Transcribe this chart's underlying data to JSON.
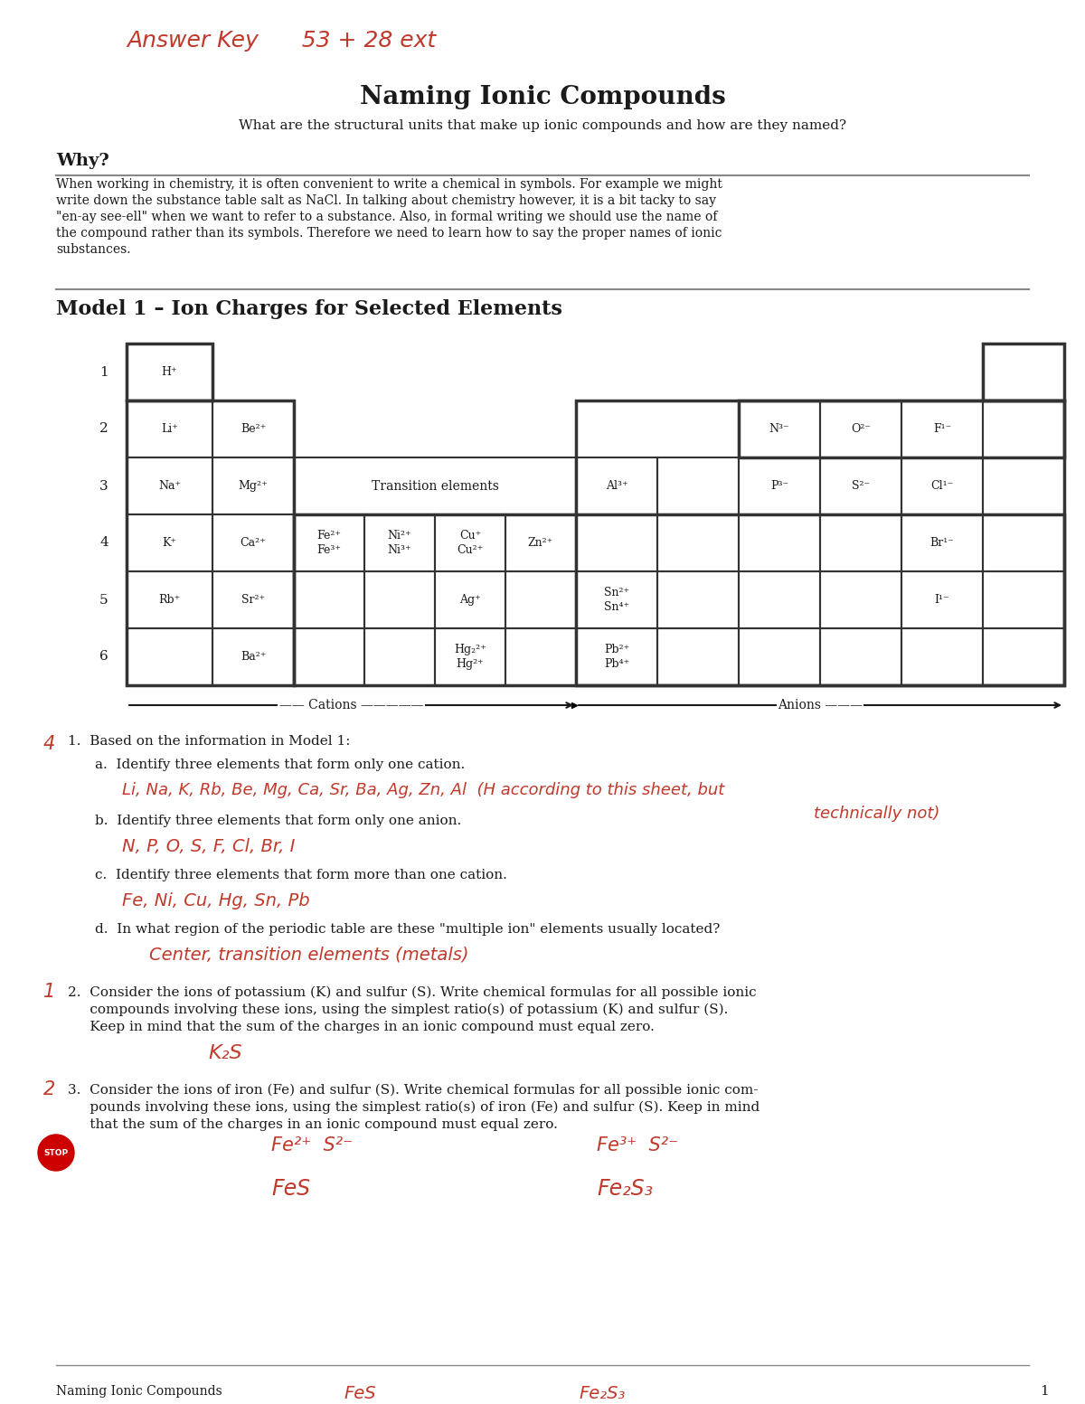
{
  "title": "Naming Ionic Compounds",
  "subtitle": "What are the structural units that make up ionic compounds and how are they named?",
  "handwritten_top": "Answer Key      53 + 28 ext",
  "why_heading": "Why?",
  "why_text_lines": [
    "When working in chemistry, it is often convenient to write a chemical in symbols. For example we might",
    "write down the substance table salt as NaCl. In talking about chemistry however, it is a bit tacky to say",
    "\"en-ay see-ell\" when we want to refer to a substance. Also, in formal writing we should use the name of",
    "the compound rather than its symbols. Therefore we need to learn how to say the proper names of ionic",
    "substances."
  ],
  "model_heading": "Model 1 – Ion Charges for Selected Elements",
  "bg_color": "#ffffff",
  "text_color": "#1a1a1a",
  "red_color": "#c0392b",
  "border_color": "#2c2c2c"
}
